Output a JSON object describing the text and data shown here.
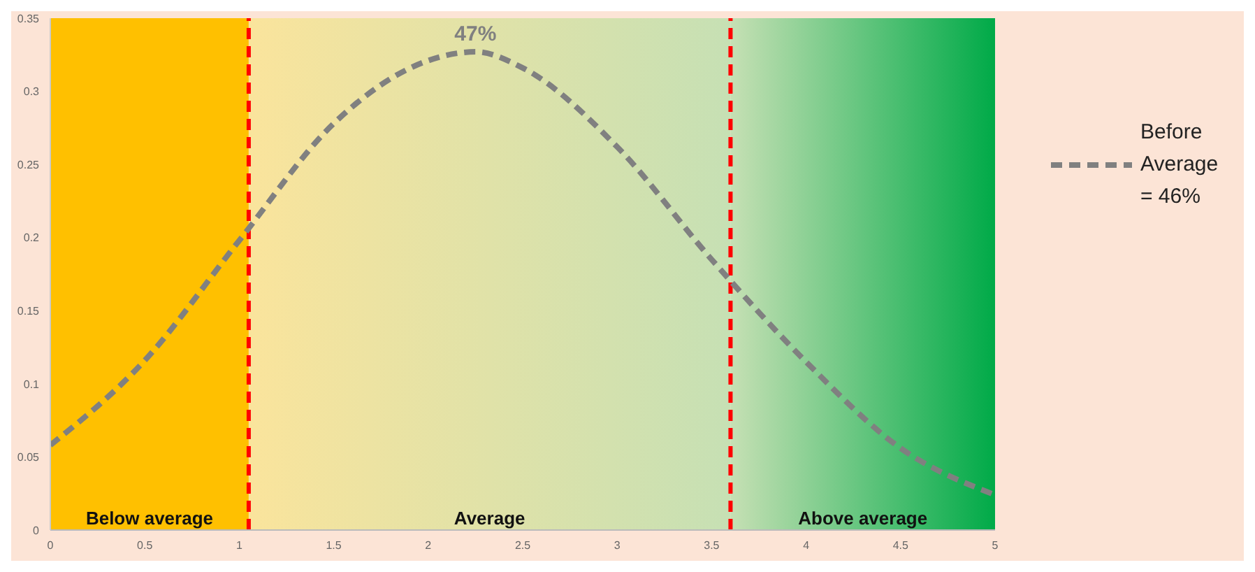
{
  "chart_data": {
    "type": "line",
    "x": [
      0,
      0.5,
      1,
      1.5,
      2,
      2.25,
      2.5,
      3,
      3.5,
      4,
      4.5,
      5
    ],
    "series": [
      {
        "name": "Before Average = 46%",
        "color": "#808080",
        "values": [
          0.058,
          0.116,
          0.198,
          0.278,
          0.321,
          0.327,
          0.316,
          0.262,
          0.185,
          0.115,
          0.056,
          0.024
        ]
      }
    ],
    "xlim": [
      0,
      5
    ],
    "xticks": [
      0,
      0.5,
      1,
      1.5,
      2,
      2.5,
      3,
      3.5,
      4,
      4.5,
      5
    ],
    "ylim": [
      0,
      0.35
    ],
    "yticks": [
      0,
      0.05,
      0.1,
      0.15,
      0.2,
      0.25,
      0.3,
      0.35
    ],
    "line_style": "dashed",
    "marker": "none",
    "grid": false,
    "legend": "right",
    "annotations": [
      {
        "text": "47%",
        "x": 2.25,
        "y": 0.327
      }
    ],
    "ref_lines": [
      {
        "axis": "x",
        "value": 1.05,
        "color": "#ff0000",
        "line_style": "dashed"
      },
      {
        "axis": "x",
        "value": 3.6,
        "color": "#ff0000",
        "line_style": "dashed"
      }
    ],
    "bands": [
      {
        "axis": "x",
        "from": 0,
        "to": 1.05,
        "label": "Below average",
        "color": "#ffc000"
      },
      {
        "axis": "x",
        "from": 1.05,
        "to": 3.6,
        "label": "Average",
        "color": "#fae49c"
      },
      {
        "axis": "x",
        "from": 3.6,
        "to": 5,
        "label": "Above average",
        "color": "#c6e0b4"
      }
    ]
  }
}
